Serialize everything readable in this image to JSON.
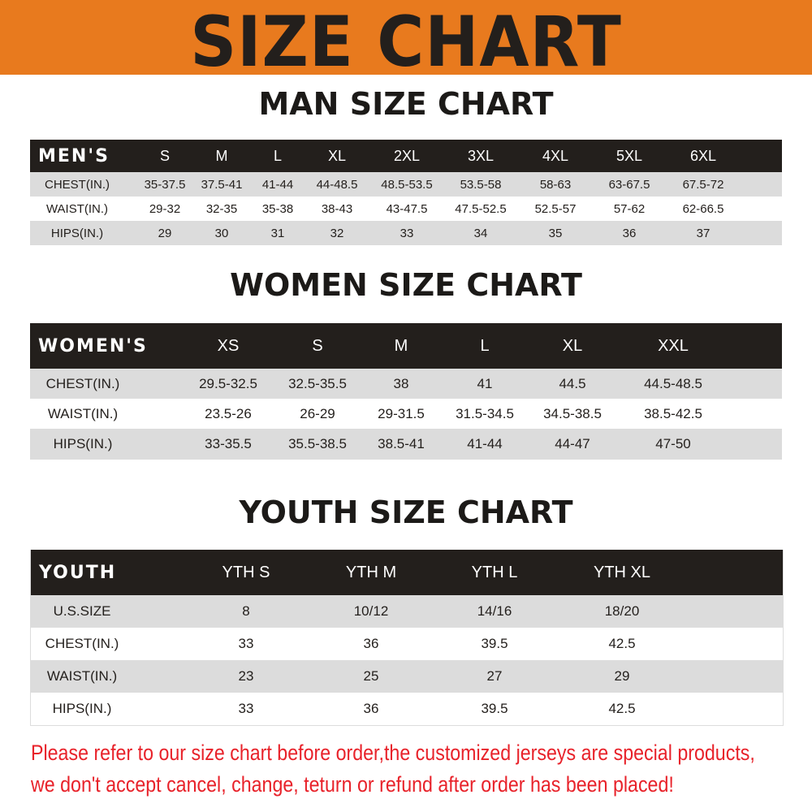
{
  "banner": {
    "title": "SIZE CHART",
    "color": "#e87a1e"
  },
  "men": {
    "title": "MAN SIZE CHART",
    "header_label": "MEN'S",
    "sizes": [
      "S",
      "M",
      "L",
      "XL",
      "2XL",
      "3XL",
      "4XL",
      "5XL",
      "6XL"
    ],
    "rows": [
      {
        "label": "CHEST(IN.)",
        "values": [
          "35-37.5",
          "37.5-41",
          "41-44",
          "44-48.5",
          "48.5-53.5",
          "53.5-58",
          "58-63",
          "63-67.5",
          "67.5-72"
        ]
      },
      {
        "label": "WAIST(IN.)",
        "values": [
          "29-32",
          "32-35",
          "35-38",
          "38-43",
          "43-47.5",
          "47.5-52.5",
          "52.5-57",
          "57-62",
          "62-66.5"
        ]
      },
      {
        "label": "HIPS(IN.)",
        "values": [
          "29",
          "30",
          "31",
          "32",
          "33",
          "34",
          "35",
          "36",
          "37"
        ]
      }
    ]
  },
  "women": {
    "title": "WOMEN SIZE CHART",
    "header_label": "WOMEN'S",
    "sizes": [
      "XS",
      "S",
      "M",
      "L",
      "XL",
      "XXL"
    ],
    "rows": [
      {
        "label": "CHEST(IN.)",
        "values": [
          "29.5-32.5",
          "32.5-35.5",
          "38",
          "41",
          "44.5",
          "44.5-48.5"
        ]
      },
      {
        "label": "WAIST(IN.)",
        "values": [
          "23.5-26",
          "26-29",
          "29-31.5",
          "31.5-34.5",
          "34.5-38.5",
          "38.5-42.5"
        ]
      },
      {
        "label": "HIPS(IN.)",
        "values": [
          "33-35.5",
          "35.5-38.5",
          "38.5-41",
          "41-44",
          "44-47",
          "47-50"
        ]
      }
    ]
  },
  "youth": {
    "title": "YOUTH SIZE CHART",
    "header_label": "YOUTH",
    "sizes": [
      "YTH S",
      "YTH M",
      "YTH L",
      "YTH XL"
    ],
    "rows": [
      {
        "label": "U.S.SIZE",
        "values": [
          "8",
          "10/12",
          "14/16",
          "18/20"
        ]
      },
      {
        "label": "CHEST(IN.)",
        "values": [
          "33",
          "36",
          "39.5",
          "42.5"
        ]
      },
      {
        "label": "WAIST(IN.)",
        "values": [
          "23",
          "25",
          "27",
          "29"
        ]
      },
      {
        "label": "HIPS(IN.)",
        "values": [
          "33",
          "36",
          "39.5",
          "42.5"
        ]
      }
    ]
  },
  "notice": {
    "line1": "Please refer to our size chart before order,the customized jerseys are special products,",
    "line2": "we don't accept cancel, change, teturn or refund after order has been placed!",
    "color": "#e8222a"
  }
}
